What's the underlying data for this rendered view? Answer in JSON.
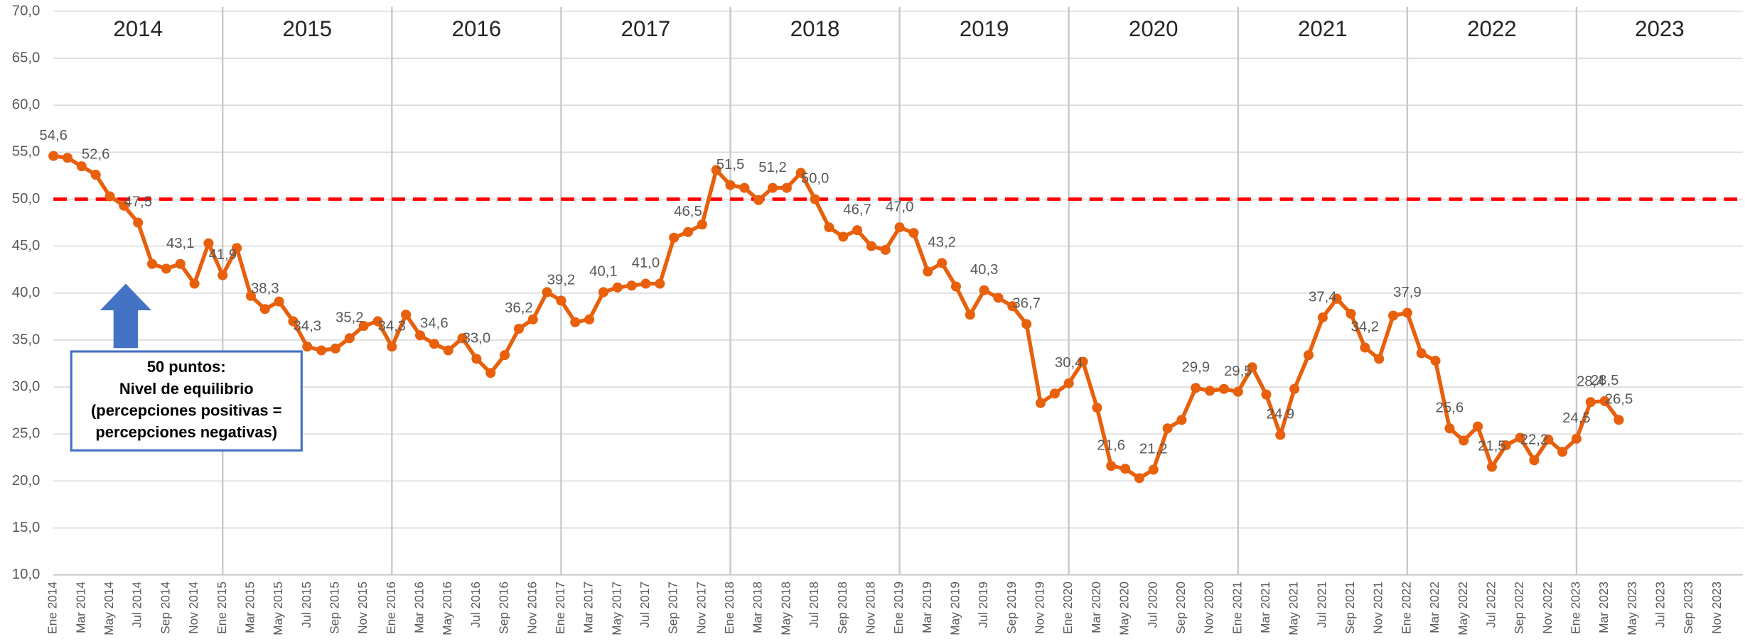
{
  "chart_data": {
    "type": "line",
    "categories": [
      "Ene 2014",
      null,
      "Mar 2014",
      null,
      "May 2014",
      null,
      "Jul 2014",
      null,
      "Sep 2014",
      null,
      "Nov 2014",
      null,
      "Ene 2015",
      null,
      "Mar 2015",
      null,
      "May 2015",
      null,
      "Jul 2015",
      null,
      "Sep 2015",
      null,
      "Nov 2015",
      null,
      "Ene 2016",
      null,
      "Mar 2016",
      null,
      "May 2016",
      null,
      "Jul 2016",
      null,
      "Sep 2016",
      null,
      "Nov 2016",
      null,
      "Ene 2017",
      null,
      "Mar 2017",
      null,
      "May 2017",
      null,
      "Jul 2017",
      null,
      "Sep 2017",
      null,
      "Nov 2017",
      null,
      "Ene 2018",
      null,
      "Mar 2018",
      null,
      "May 2018",
      null,
      "Jul 2018",
      null,
      "Sep 2018",
      null,
      "Nov 2018",
      null,
      "Ene 2019",
      null,
      "Mar 2019",
      null,
      "May 2019",
      null,
      "Jul 2019",
      null,
      "Sep 2019",
      null,
      "Nov 2019",
      null,
      "Ene 2020",
      null,
      "Mar 2020",
      null,
      "May 2020",
      null,
      "Jul 2020",
      null,
      "Sep 2020",
      null,
      "Nov 2020",
      null,
      "Ene 2021",
      null,
      "Mar 2021",
      null,
      "May 2021",
      null,
      "Jul 2021",
      null,
      "Sep 2021",
      null,
      "Nov 2021",
      null,
      "Ene 2022",
      null,
      "Mar 2022",
      null,
      "May 2022",
      null,
      "Jul 2022",
      null,
      "Sep 2022",
      null,
      "Nov 2022",
      null,
      "Ene 2023",
      null,
      "Mar 2023",
      null,
      "May 2023",
      null,
      "Jul 2023",
      null,
      "Sep 2023",
      null,
      "Nov 2023",
      null
    ],
    "series": [
      {
        "color": "#e8600c",
        "values": [
          54.6,
          54.4,
          53.5,
          52.6,
          50.3,
          49.3,
          47.5,
          43.1,
          42.6,
          43.1,
          41.0,
          45.3,
          41.9,
          44.8,
          39.7,
          38.3,
          39.1,
          37.0,
          34.3,
          33.9,
          34.1,
          35.2,
          36.5,
          37.0,
          34.3,
          37.7,
          35.5,
          34.6,
          33.9,
          35.2,
          33.0,
          31.5,
          33.4,
          36.2,
          37.2,
          40.1,
          39.2,
          36.9,
          37.2,
          40.1,
          40.6,
          40.8,
          41.0,
          41.0,
          45.9,
          46.5,
          47.3,
          53.1,
          51.5,
          51.2,
          49.9,
          51.2,
          51.2,
          52.8,
          50.0,
          47.0,
          46.0,
          46.7,
          45.0,
          44.6,
          47.0,
          46.4,
          42.3,
          43.2,
          40.7,
          37.7,
          40.3,
          39.5,
          38.6,
          36.7,
          28.3,
          29.3,
          30.4,
          32.7,
          27.8,
          21.6,
          21.3,
          20.3,
          21.2,
          25.6,
          26.5,
          29.9,
          29.6,
          29.8,
          29.5,
          32.1,
          29.2,
          24.9,
          29.8,
          33.4,
          37.4,
          39.4,
          37.8,
          34.2,
          33.0,
          37.6,
          37.9,
          33.6,
          32.8,
          25.6,
          24.3,
          25.8,
          21.5,
          23.8,
          24.6,
          22.2,
          24.4,
          23.1,
          24.5,
          28.4,
          28.5,
          26.5,
          null,
          null,
          null,
          null,
          null,
          null,
          null,
          null
        ],
        "value_labels": [
          "54,6",
          null,
          null,
          "52,6",
          null,
          null,
          "47,5",
          null,
          null,
          "43,1",
          null,
          null,
          "41,9",
          null,
          null,
          "38,3",
          null,
          null,
          "34,3",
          null,
          null,
          "35,2",
          null,
          null,
          "34,3",
          null,
          null,
          "34,6",
          null,
          null,
          "33,0",
          null,
          null,
          "36,2",
          null,
          null,
          "39,2",
          null,
          null,
          "40,1",
          null,
          null,
          "41,0",
          null,
          null,
          "46,5",
          null,
          null,
          "51,5",
          null,
          null,
          "51,2",
          null,
          null,
          "50,0",
          null,
          null,
          "46,7",
          null,
          null,
          "47,0",
          null,
          null,
          "43,2",
          null,
          null,
          "40,3",
          null,
          null,
          "36,7",
          null,
          null,
          "30,4",
          null,
          null,
          "21,6",
          null,
          null,
          "21,2",
          null,
          null,
          "29,9",
          null,
          null,
          "29,5",
          null,
          null,
          "24,9",
          null,
          null,
          "37,4",
          null,
          null,
          "34,2",
          null,
          null,
          "37,9",
          null,
          null,
          "25,6",
          null,
          null,
          "21,5",
          null,
          null,
          "22,2",
          null,
          null,
          "24,5",
          "28,4",
          "28,5",
          "26,5",
          null,
          null,
          null,
          null,
          null,
          null,
          null,
          null
        ]
      }
    ],
    "ylim": [
      10,
      70
    ],
    "yticks": [
      {
        "value": 10,
        "label": "10,0"
      },
      {
        "value": 15,
        "label": "15,0"
      },
      {
        "value": 20,
        "label": "20,0"
      },
      {
        "value": 25,
        "label": "25,0"
      },
      {
        "value": 30,
        "label": "30,0"
      },
      {
        "value": 35,
        "label": "35,0"
      },
      {
        "value": 40,
        "label": "40,0"
      },
      {
        "value": 45,
        "label": "45,0"
      },
      {
        "value": 50,
        "label": "50,0"
      },
      {
        "value": 55,
        "label": "55,0"
      },
      {
        "value": 60,
        "label": "60,0"
      },
      {
        "value": 65,
        "label": "65,0"
      },
      {
        "value": 70,
        "label": "70,0"
      }
    ],
    "grid": true,
    "year_labels": [
      "2014",
      "2015",
      "2016",
      "2017",
      "2018",
      "2019",
      "2020",
      "2021",
      "2022",
      "2023"
    ],
    "reference_line": {
      "value": 50,
      "color": "#ff0000"
    },
    "annotation": [
      "50 puntos:",
      "Nivel de equilibrio",
      "(percepciones positivas =",
      "percepciones negativas)"
    ]
  }
}
